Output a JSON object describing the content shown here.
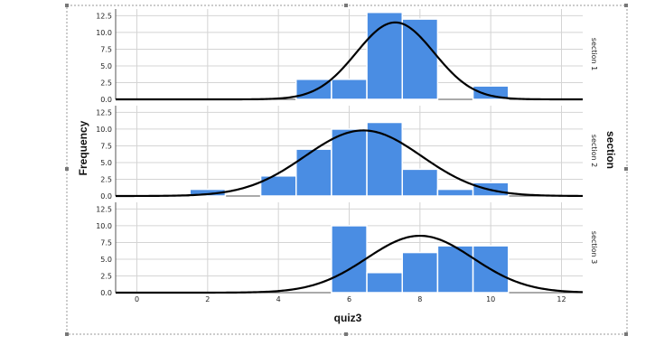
{
  "chart_data": {
    "type": "bar",
    "xlabel": "quiz3",
    "ylabel": "Frequency",
    "facet_title": "section",
    "xlim": [
      -0.6,
      12.6
    ],
    "ylim": [
      0,
      13.5
    ],
    "x_ticks": [
      "0",
      "2",
      "4",
      "6",
      "8",
      "10",
      "12"
    ],
    "y_ticks": [
      "0.0",
      "2.5",
      "5.0",
      "7.5",
      "10.0",
      "12.5"
    ],
    "bar_width": 1,
    "colors": {
      "bar": "#4a8de3",
      "curve": "#000000",
      "grid": "#d4d4d4"
    },
    "panels": [
      {
        "name": "section 1",
        "bars": [
          {
            "x": 5,
            "y": 3
          },
          {
            "x": 6,
            "y": 3
          },
          {
            "x": 7,
            "y": 13
          },
          {
            "x": 8,
            "y": 12
          },
          {
            "x": 10,
            "y": 2
          }
        ],
        "curve": {
          "mean": 7.3,
          "sd": 1.1,
          "peak": 11.5
        }
      },
      {
        "name": "section 2",
        "bars": [
          {
            "x": 2,
            "y": 1
          },
          {
            "x": 4,
            "y": 3
          },
          {
            "x": 5,
            "y": 7
          },
          {
            "x": 6,
            "y": 10
          },
          {
            "x": 7,
            "y": 11
          },
          {
            "x": 8,
            "y": 4
          },
          {
            "x": 9,
            "y": 1
          },
          {
            "x": 10,
            "y": 2
          }
        ],
        "curve": {
          "mean": 6.4,
          "sd": 1.65,
          "peak": 9.8
        }
      },
      {
        "name": "section 3",
        "bars": [
          {
            "x": 6,
            "y": 10
          },
          {
            "x": 7,
            "y": 3
          },
          {
            "x": 8,
            "y": 6
          },
          {
            "x": 9,
            "y": 7
          },
          {
            "x": 10,
            "y": 7
          }
        ],
        "curve": {
          "mean": 8.0,
          "sd": 1.5,
          "peak": 8.5
        }
      }
    ]
  }
}
